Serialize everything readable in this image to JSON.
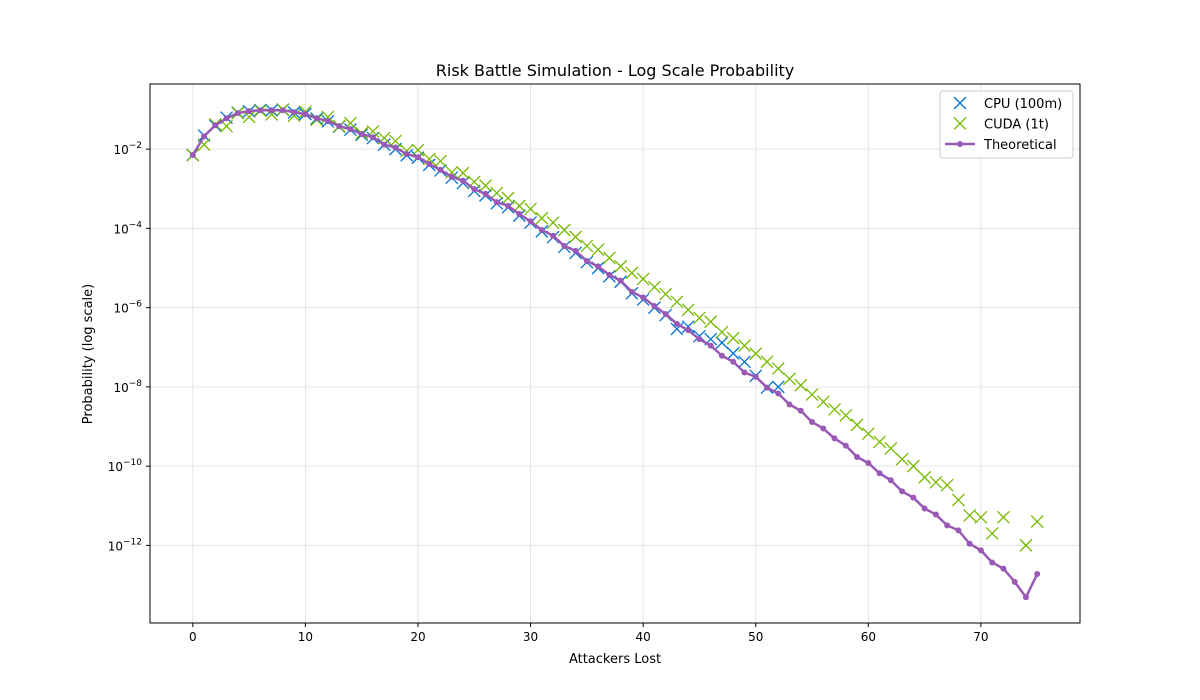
{
  "chart_data": {
    "type": "scatter",
    "title": "Risk Battle Simulation - Log Scale Probability",
    "xlabel": "Attackers Lost",
    "ylabel": "Probability (log scale)",
    "xlim": [
      -3.8,
      78.8
    ],
    "ylim": [
      1.1e-14,
      0.44
    ],
    "yscale": "log",
    "grid": true,
    "legend_position": "top-right",
    "xticks": [
      0,
      10,
      20,
      30,
      40,
      50,
      60,
      70
    ],
    "yticks": [
      {
        "value": 0.01,
        "base": "10",
        "exp": "−2"
      },
      {
        "value": 0.0001,
        "base": "10",
        "exp": "−4"
      },
      {
        "value": 1e-06,
        "base": "10",
        "exp": "−6"
      },
      {
        "value": 1e-08,
        "base": "10",
        "exp": "−8"
      },
      {
        "value": 1e-10,
        "base": "10",
        "exp": "−10"
      },
      {
        "value": 1e-12,
        "base": "10",
        "exp": "−12"
      }
    ],
    "series": [
      {
        "name": "CPU (100m)",
        "style": "x-marker",
        "color": "#0072d6",
        "x": [
          0,
          1,
          2,
          3,
          4,
          5,
          6,
          7,
          8,
          9,
          10,
          11,
          12,
          13,
          14,
          15,
          16,
          17,
          18,
          19,
          20,
          21,
          22,
          23,
          24,
          25,
          26,
          27,
          28,
          29,
          30,
          31,
          32,
          33,
          34,
          35,
          36,
          37,
          38,
          39,
          40,
          41,
          42,
          43,
          44,
          45,
          46,
          47,
          48,
          49,
          50,
          51,
          52
        ],
        "y": [
          0.0071,
          0.022,
          0.039,
          0.062,
          0.083,
          0.09,
          0.097,
          0.095,
          0.098,
          0.084,
          0.077,
          0.059,
          0.05,
          0.037,
          0.031,
          0.023,
          0.019,
          0.013,
          0.01,
          0.007,
          0.0061,
          0.004,
          0.0029,
          0.0019,
          0.0014,
          0.00088,
          0.00068,
          0.00043,
          0.00034,
          0.00021,
          0.00014,
          8.4e-05,
          6e-05,
          3.4e-05,
          2.4e-05,
          1.4e-05,
          1e-05,
          6.2e-06,
          4.5e-06,
          2.3e-06,
          1.6e-06,
          1e-06,
          6.5e-07,
          2.9e-07,
          3.3e-07,
          1.9e-07,
          1.6e-07,
          1.3e-07,
          7e-08,
          4.3e-08,
          1.9e-08,
          9.6e-09,
          1e-08
        ]
      },
      {
        "name": "CUDA (1t)",
        "style": "x-marker",
        "color": "#77b900",
        "x": [
          0,
          1,
          2,
          3,
          4,
          5,
          6,
          7,
          8,
          9,
          10,
          11,
          12,
          13,
          14,
          15,
          16,
          17,
          18,
          19,
          20,
          21,
          22,
          23,
          24,
          25,
          26,
          27,
          28,
          29,
          30,
          31,
          32,
          33,
          34,
          35,
          36,
          37,
          38,
          39,
          40,
          41,
          42,
          43,
          44,
          45,
          46,
          47,
          48,
          49,
          50,
          51,
          52,
          53,
          54,
          55,
          56,
          57,
          58,
          59,
          60,
          61,
          62,
          63,
          64,
          65,
          66,
          67,
          68,
          69,
          70,
          71,
          72,
          74,
          75
        ],
        "y": [
          0.007,
          0.013,
          0.042,
          0.038,
          0.081,
          0.065,
          0.093,
          0.075,
          0.1,
          0.07,
          0.088,
          0.055,
          0.065,
          0.038,
          0.045,
          0.025,
          0.028,
          0.019,
          0.016,
          0.009,
          0.0095,
          0.0056,
          0.005,
          0.0026,
          0.0025,
          0.0015,
          0.0012,
          0.00078,
          0.00058,
          0.00037,
          0.00031,
          0.00018,
          0.00014,
          9.1e-05,
          6.1e-05,
          3.6e-05,
          2.9e-05,
          1.8e-05,
          1.1e-05,
          7.5e-06,
          5.3e-06,
          3.3e-06,
          2.2e-06,
          1.4e-06,
          8.8e-07,
          5.5e-07,
          4.4e-07,
          2.4e-07,
          1.7e-07,
          1.1e-07,
          6.9e-08,
          4.3e-08,
          2.9e-08,
          1.6e-08,
          1.1e-08,
          6.4e-09,
          4.2e-09,
          2.7e-09,
          1.9e-09,
          1.1e-09,
          6.6e-10,
          4.1e-10,
          2.8e-10,
          1.5e-10,
          1e-10,
          5.2e-11,
          3.9e-11,
          3.3e-11,
          1.4e-11,
          5.7e-12,
          5.1e-12,
          2e-12,
          5.1e-12,
          1e-12,
          4e-12
        ]
      },
      {
        "name": "Theoretical",
        "style": "line-dot",
        "color": "#9b59b6",
        "x": [
          0,
          1,
          2,
          3,
          4,
          5,
          6,
          7,
          8,
          9,
          10,
          11,
          12,
          13,
          14,
          15,
          16,
          17,
          18,
          19,
          20,
          21,
          22,
          23,
          24,
          25,
          26,
          27,
          28,
          29,
          30,
          31,
          32,
          33,
          34,
          35,
          36,
          37,
          38,
          39,
          40,
          41,
          42,
          43,
          44,
          45,
          46,
          47,
          48,
          49,
          50,
          51,
          52,
          53,
          54,
          55,
          56,
          57,
          58,
          59,
          60,
          61,
          62,
          63,
          64,
          65,
          66,
          67,
          68,
          69,
          70,
          71,
          72,
          73,
          74,
          75
        ],
        "y": [
          0.0071,
          0.021,
          0.04,
          0.06,
          0.081,
          0.091,
          0.096,
          0.096,
          0.096,
          0.086,
          0.076,
          0.06,
          0.051,
          0.038,
          0.032,
          0.024,
          0.02,
          0.013,
          0.011,
          0.0075,
          0.0063,
          0.0042,
          0.003,
          0.002,
          0.0016,
          0.00098,
          0.00074,
          0.00046,
          0.00037,
          0.00023,
          0.00015,
          9.1e-05,
          6.5e-05,
          3.6e-05,
          2.7e-05,
          1.5e-05,
          1.1e-05,
          6.7e-06,
          4.8e-06,
          2.5e-06,
          1.8e-06,
          1.1e-06,
          6.9e-07,
          3.9e-07,
          2.7e-07,
          1.6e-07,
          1.1e-07,
          6.1e-08,
          4.3e-08,
          2.3e-08,
          1.8e-08,
          9.6e-09,
          6.8e-09,
          3.6e-09,
          2.5e-09,
          1.3e-09,
          8.9e-10,
          5e-10,
          3.3e-10,
          1.7e-10,
          1.2e-10,
          6.6e-11,
          4.4e-11,
          2.3e-11,
          1.6e-11,
          8.5e-12,
          6e-12,
          3.2e-12,
          2.4e-12,
          1.1e-12,
          7.5e-13,
          3.7e-13,
          2.6e-13,
          1.2e-13,
          4.9e-14,
          1.9e-13
        ]
      }
    ]
  }
}
